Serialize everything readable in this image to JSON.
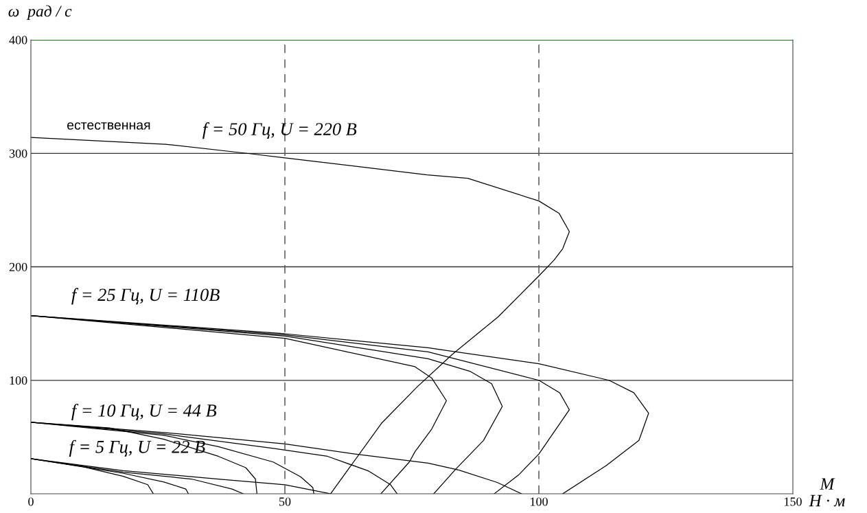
{
  "chart_data": {
    "type": "line",
    "xlabel": "M\nН · м",
    "ylabel": "ω  рад / с",
    "xlim": [
      0,
      150
    ],
    "xticks": [
      0,
      50,
      100,
      150
    ],
    "ylim": [
      0,
      400
    ],
    "yticks": [
      100,
      200,
      300,
      400
    ],
    "grid": "y",
    "marker": "none",
    "line_style": "solid",
    "ref_lines": [
      {
        "axis": "x",
        "value": 50,
        "color": "#555555",
        "line_style": "dashed"
      },
      {
        "axis": "x",
        "value": 100,
        "color": "#555555",
        "line_style": "dashed"
      },
      {
        "axis": "y",
        "value": 400,
        "color": "#006400",
        "line_style": "solid"
      }
    ],
    "annotations": [
      "естественная",
      "f = 50 Гц, U = 220 В",
      "f = 25 Гц, U = 110В",
      "f = 10 Гц, U = 44 В",
      "f = 5 Гц, U = 22 В"
    ],
    "series": [
      {
        "color": "#000000",
        "x": [
          0,
          26.5,
          42.5,
          50,
          78,
          86,
          100,
          104,
          106,
          104.7,
          103,
          100,
          92,
          83,
          76,
          69,
          59
        ],
        "values": [
          314,
          308,
          300,
          296,
          281,
          278,
          258,
          247,
          231,
          216,
          206,
          192,
          156,
          123,
          94,
          62,
          0
        ]
      },
      {
        "color": "#000000",
        "x": [
          0,
          50,
          78.2,
          100,
          113.8,
          118.7,
          121.6,
          119.7,
          113.3,
          104.7
        ],
        "values": [
          157,
          141,
          128.6,
          114.6,
          100,
          89,
          71,
          47,
          25,
          0
        ]
      },
      {
        "color": "#000000",
        "x": [
          0,
          50,
          78.2,
          100,
          104.1,
          106,
          100,
          96.1,
          91.2
        ],
        "values": [
          157,
          140,
          125,
          100,
          89,
          74,
          35,
          17,
          0
        ]
      },
      {
        "color": "#000000",
        "x": [
          0,
          50,
          78.2,
          86.4,
          90.7,
          92.8,
          89.1,
          83.7,
          79.3
        ],
        "values": [
          157,
          139,
          119,
          108,
          97,
          77,
          47,
          22,
          0
        ]
      },
      {
        "color": "#000000",
        "x": [
          0,
          50,
          75.6,
          78.9,
          81.8,
          78.9,
          75.6,
          74.5,
          68.9
        ],
        "values": [
          157,
          137,
          112,
          102,
          82,
          57,
          37,
          28,
          0
        ]
      },
      {
        "color": "#000000",
        "x": [
          0,
          15.5,
          26.2,
          36.9,
          42.3,
          44.2,
          44.5
        ],
        "values": [
          63,
          58,
          48,
          33,
          23,
          13,
          0
        ]
      },
      {
        "color": "#000000",
        "x": [
          0,
          26.2,
          36.9,
          47.7,
          53.1,
          55.5,
          55.7
        ],
        "values": [
          63,
          51.5,
          41.5,
          28,
          15,
          5.5,
          0
        ]
      },
      {
        "color": "#000000",
        "x": [
          0,
          26.2,
          47.7,
          58.4,
          66.5,
          70.8,
          72.1
        ],
        "values": [
          63,
          52.7,
          40,
          33,
          20,
          8,
          0
        ]
      },
      {
        "color": "#000000",
        "x": [
          0,
          26.2,
          50,
          63.8,
          78.2,
          84.2,
          91.8,
          96.6
        ],
        "values": [
          63,
          54,
          44,
          35,
          27,
          21,
          10,
          0
        ]
      },
      {
        "color": "#000000",
        "x": [
          0,
          10.1,
          18.2,
          23,
          24.1
        ],
        "values": [
          31,
          24,
          15.4,
          8,
          0
        ]
      },
      {
        "color": "#000000",
        "x": [
          0,
          18.2,
          26.2,
          30.5,
          31
        ],
        "values": [
          31,
          18,
          10.4,
          4.2,
          0
        ]
      },
      {
        "color": "#000000",
        "x": [
          0,
          18.2,
          31.6,
          39.6,
          41.8
        ],
        "values": [
          31,
          19,
          13,
          4.2,
          0
        ]
      },
      {
        "color": "#000000",
        "x": [
          0,
          18.2,
          36.9,
          50,
          59
        ],
        "values": [
          31,
          20.4,
          13,
          8,
          0
        ]
      }
    ]
  }
}
